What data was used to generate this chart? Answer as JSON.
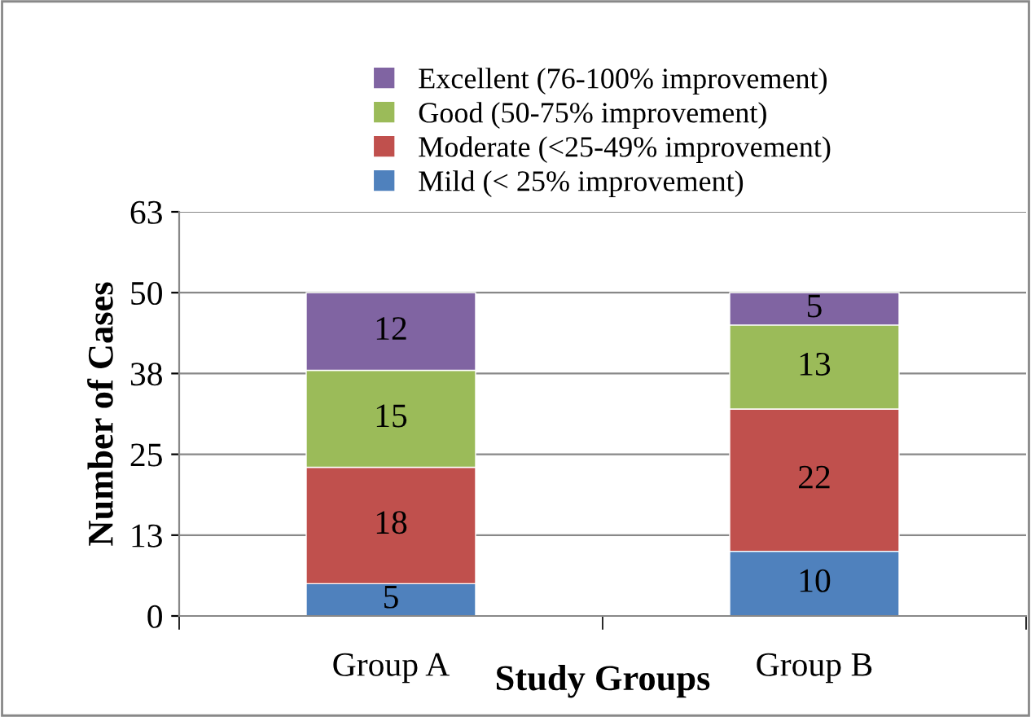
{
  "chart_data": {
    "type": "bar",
    "stacked": true,
    "xlabel": "Study Groups",
    "ylabel": "Number of Cases",
    "categories": [
      "Group A",
      "Group B"
    ],
    "series": [
      {
        "name": "Mild (< 25% improvement)",
        "color": "#4f81bd",
        "values": [
          5,
          10
        ]
      },
      {
        "name": "Moderate (<25-49% improvement)",
        "color": "#c0504d",
        "values": [
          18,
          22
        ]
      },
      {
        "name": "Good (50-75% improvement)",
        "color": "#9bbb59",
        "values": [
          15,
          13
        ]
      },
      {
        "name": "Excellent (76-100% improvement)",
        "color": "#8064a2",
        "values": [
          12,
          5
        ]
      }
    ],
    "ylim": [
      0,
      62.5
    ],
    "yticks": [
      0,
      {
        "value": 12.5,
        "label": "13"
      },
      25,
      {
        "value": 37.5,
        "label": "38"
      },
      50,
      {
        "value": 62.5,
        "label": "63"
      }
    ],
    "grid": "y",
    "legend": "top",
    "data_labels": true
  }
}
